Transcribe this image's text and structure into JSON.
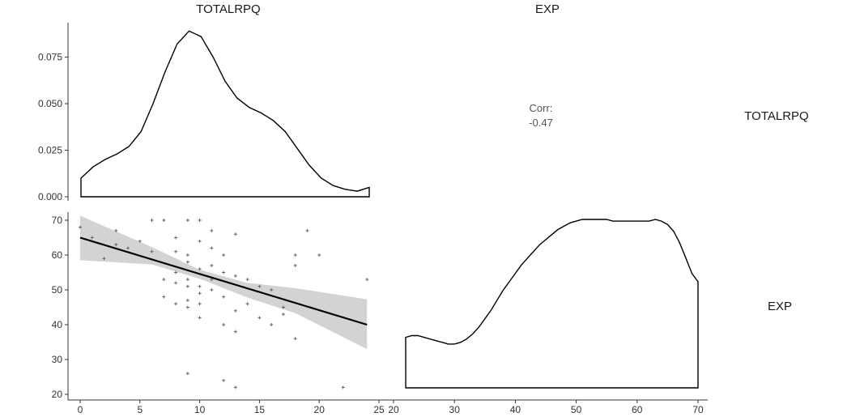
{
  "chart_data": {
    "type": "pairs-plot",
    "variables": [
      "TOTALRPQ",
      "EXP"
    ],
    "column_strips": [
      "TOTALRPQ",
      "EXP"
    ],
    "row_strips": [
      "TOTALRPQ",
      "EXP"
    ],
    "panels": {
      "totalrpq_density": {
        "type": "area",
        "x": [
          0,
          1,
          2,
          3,
          4,
          5,
          6,
          7,
          8,
          9,
          10,
          11,
          12,
          13,
          14,
          15,
          16,
          17,
          18,
          19,
          20,
          21,
          22,
          23,
          24
        ],
        "y": [
          0.01,
          0.016,
          0.02,
          0.023,
          0.027,
          0.035,
          0.05,
          0.067,
          0.082,
          0.089,
          0.086,
          0.075,
          0.062,
          0.053,
          0.048,
          0.045,
          0.041,
          0.035,
          0.026,
          0.017,
          0.01,
          0.006,
          0.004,
          0.003,
          0.005
        ],
        "xlim": [
          0,
          24
        ],
        "ylim": [
          0,
          0.09
        ],
        "y_ticks": [
          0,
          0.025,
          0.05,
          0.075
        ],
        "y_tick_labels": [
          "0.000",
          "0.025",
          "0.050",
          "0.075"
        ]
      },
      "correlation": {
        "label": "Corr:",
        "value": "-0.47"
      },
      "scatter": {
        "type": "scatter",
        "xlim": [
          0,
          25
        ],
        "ylim": [
          20,
          72
        ],
        "x_ticks": [
          0,
          5,
          10,
          15,
          20,
          25
        ],
        "x_tick_labels": [
          "0",
          "5",
          "10",
          "15",
          "20",
          "25"
        ],
        "y_ticks": [
          20,
          30,
          40,
          50,
          60,
          70
        ],
        "y_tick_labels": [
          "20",
          "30",
          "40",
          "50",
          "60",
          "70"
        ],
        "points": [
          [
            0,
            68
          ],
          [
            1,
            65
          ],
          [
            2,
            59
          ],
          [
            3,
            67
          ],
          [
            3,
            63
          ],
          [
            4,
            62
          ],
          [
            5,
            64
          ],
          [
            6,
            61
          ],
          [
            6,
            70
          ],
          [
            7,
            70
          ],
          [
            7,
            53
          ],
          [
            7,
            48
          ],
          [
            8,
            65
          ],
          [
            8,
            61
          ],
          [
            8,
            55
          ],
          [
            8,
            52
          ],
          [
            8,
            46
          ],
          [
            9,
            70
          ],
          [
            9,
            60
          ],
          [
            9,
            58
          ],
          [
            9,
            53
          ],
          [
            9,
            51
          ],
          [
            9,
            47
          ],
          [
            9,
            45
          ],
          [
            9,
            26
          ],
          [
            10,
            70
          ],
          [
            10,
            64
          ],
          [
            10,
            56
          ],
          [
            10,
            51
          ],
          [
            10,
            49
          ],
          [
            10,
            46
          ],
          [
            10,
            42
          ],
          [
            11,
            67
          ],
          [
            11,
            62
          ],
          [
            11,
            57
          ],
          [
            11,
            53
          ],
          [
            11,
            50
          ],
          [
            12,
            60
          ],
          [
            12,
            55
          ],
          [
            12,
            48
          ],
          [
            12,
            40
          ],
          [
            12,
            24
          ],
          [
            13,
            66
          ],
          [
            13,
            54
          ],
          [
            13,
            44
          ],
          [
            13,
            38
          ],
          [
            13,
            22
          ],
          [
            14,
            53
          ],
          [
            14,
            46
          ],
          [
            15,
            51
          ],
          [
            15,
            42
          ],
          [
            16,
            50
          ],
          [
            16,
            40
          ],
          [
            17,
            45
          ],
          [
            17,
            43
          ],
          [
            18,
            60
          ],
          [
            18,
            57
          ],
          [
            18,
            36
          ],
          [
            19,
            67
          ],
          [
            20,
            60
          ],
          [
            22,
            22
          ],
          [
            24,
            53
          ]
        ],
        "fit_line": {
          "x": [
            0,
            24
          ],
          "y": [
            65,
            40
          ]
        },
        "ci_band": {
          "x": [
            0,
            6,
            10,
            14,
            18,
            24
          ],
          "lower": [
            58.5,
            57.3,
            53.2,
            47.8,
            43.3,
            33.0
          ],
          "upper": [
            71.3,
            62.3,
            55.8,
            52.0,
            50.5,
            47.3
          ]
        }
      },
      "exp_density": {
        "type": "area",
        "x": [
          22,
          23,
          24,
          25,
          26,
          27,
          28,
          29,
          30,
          31,
          32,
          33,
          34,
          35,
          36,
          37,
          38,
          39,
          40,
          41,
          42,
          43,
          44,
          45,
          46,
          47,
          48,
          49,
          50,
          51,
          52,
          53,
          54,
          55,
          56,
          57,
          58,
          59,
          60,
          61,
          62,
          63,
          64,
          65,
          66,
          67,
          68,
          69,
          70
        ],
        "y": [
          0.3,
          0.31,
          0.31,
          0.3,
          0.29,
          0.28,
          0.27,
          0.26,
          0.26,
          0.27,
          0.29,
          0.32,
          0.36,
          0.41,
          0.46,
          0.52,
          0.58,
          0.63,
          0.68,
          0.73,
          0.77,
          0.81,
          0.85,
          0.88,
          0.91,
          0.94,
          0.96,
          0.98,
          0.99,
          1.0,
          1.0,
          1.0,
          1.0,
          1.0,
          0.99,
          0.99,
          0.99,
          0.99,
          0.99,
          0.99,
          0.99,
          1.0,
          0.99,
          0.97,
          0.93,
          0.86,
          0.77,
          0.68,
          0.63
        ],
        "xlim": [
          20,
          70
        ],
        "x_ticks": [
          20,
          30,
          40,
          50,
          60,
          70
        ],
        "x_tick_labels": [
          "20",
          "30",
          "40",
          "50",
          "60",
          "70"
        ]
      }
    }
  }
}
